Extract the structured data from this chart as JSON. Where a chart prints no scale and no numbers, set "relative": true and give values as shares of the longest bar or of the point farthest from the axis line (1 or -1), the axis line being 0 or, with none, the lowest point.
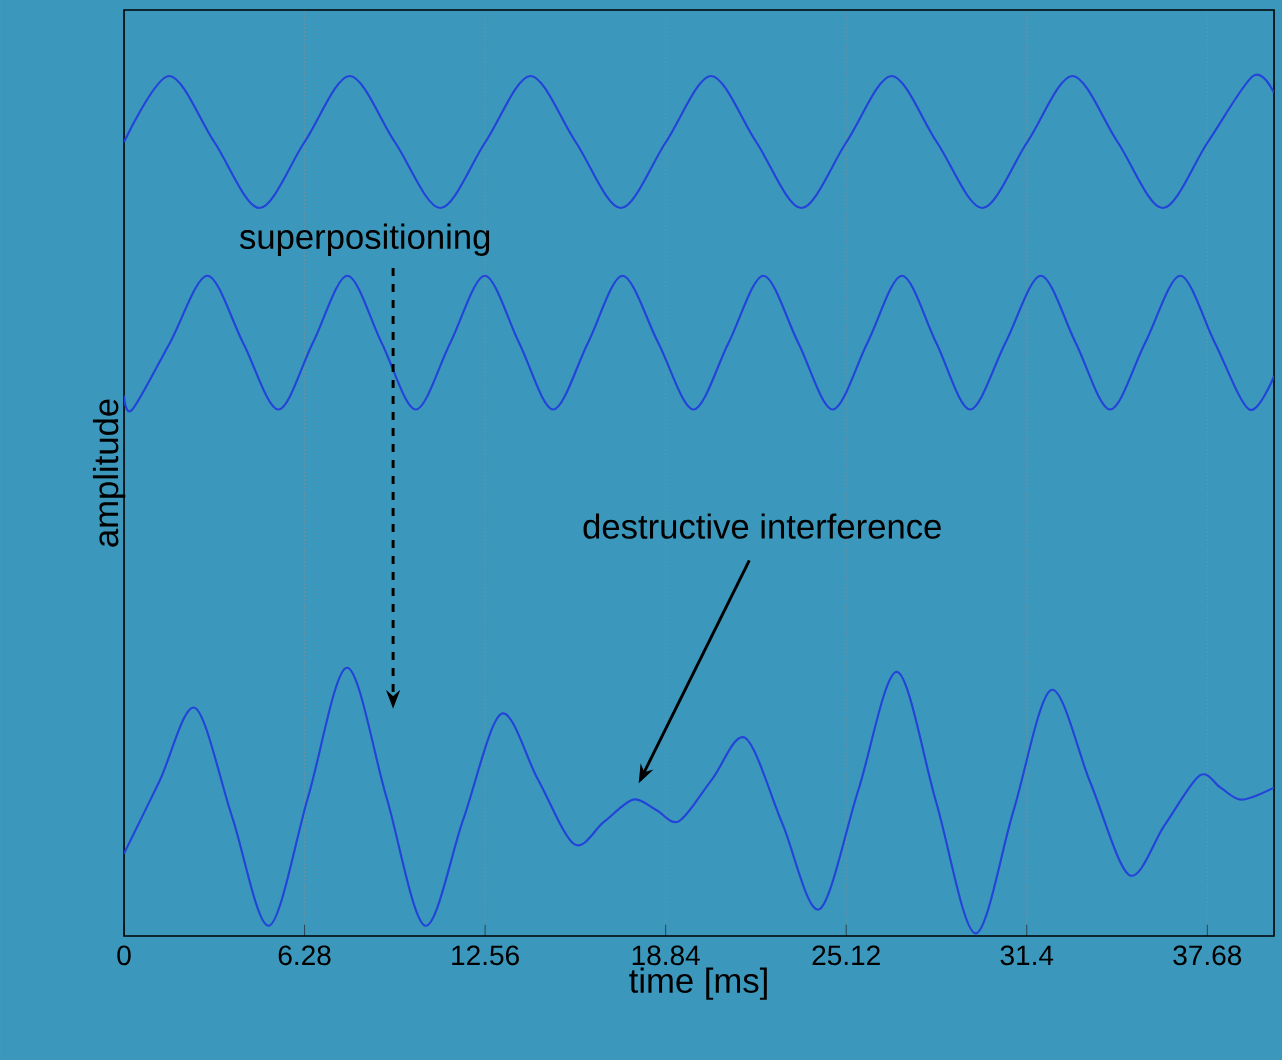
{
  "chart_data": {
    "type": "line",
    "relative": true,
    "xlabel": "time [ms]",
    "ylabel": "amplitude",
    "xlim": [
      0,
      40
    ],
    "xticks": [
      0,
      6.28,
      12.56,
      18.84,
      25.12,
      31.4,
      37.68
    ],
    "grid": "x",
    "annotations": [
      "superpositioning",
      "destructive interference"
    ],
    "series": [
      {
        "color": "#2443d8",
        "x": [
          0,
          1.57,
          3.14,
          4.71,
          6.28,
          7.85,
          9.42,
          11.0,
          12.57,
          14.14,
          15.71,
          17.28,
          18.85,
          20.42,
          21.99,
          23.56,
          25.13,
          26.7,
          28.27,
          29.85,
          31.42,
          32.99,
          34.56,
          36.13,
          37.7,
          39.27,
          40
        ],
        "values": [
          0.923,
          1,
          0.923,
          0.846,
          0.923,
          1,
          0.923,
          0.846,
          0.923,
          1,
          0.923,
          0.846,
          0.923,
          1,
          0.923,
          0.846,
          0.923,
          1,
          0.923,
          0.846,
          0.923,
          1,
          0.923,
          0.846,
          0.923,
          1,
          0.98
        ]
      },
      {
        "color": "#2443d8",
        "x": [
          0,
          0.29,
          1.6,
          2.9,
          4.14,
          5.37,
          6.57,
          7.77,
          8.96,
          10.15,
          11.35,
          12.55,
          13.74,
          14.93,
          16.14,
          17.34,
          18.58,
          19.81,
          21.03,
          22.24,
          23.45,
          24.65,
          25.86,
          27.06,
          28.25,
          29.43,
          30.66,
          31.89,
          33.1,
          34.3,
          35.52,
          36.74,
          37.94,
          39.14,
          40
        ],
        "values": [
          0.627,
          0.611,
          0.689,
          0.767,
          0.689,
          0.611,
          0.689,
          0.767,
          0.689,
          0.611,
          0.689,
          0.767,
          0.689,
          0.611,
          0.689,
          0.767,
          0.689,
          0.611,
          0.689,
          0.767,
          0.689,
          0.611,
          0.689,
          0.767,
          0.689,
          0.611,
          0.689,
          0.767,
          0.689,
          0.611,
          0.689,
          0.767,
          0.689,
          0.611,
          0.65
        ]
      },
      {
        "color": "#2443d8",
        "x": [
          0,
          1.24,
          2.47,
          3.76,
          5.05,
          6.41,
          7.76,
          9.12,
          10.47,
          11.8,
          13.12,
          14.39,
          15.66,
          16.69,
          17.71,
          18.51,
          19.31,
          20.46,
          21.61,
          22.9,
          24.18,
          25.54,
          26.89,
          28.25,
          29.61,
          30.93,
          32.25,
          33.61,
          34.97,
          36.19,
          37.41,
          38.14,
          38.87,
          40
        ],
        "values": [
          0.093,
          0.178,
          0.263,
          0.136,
          0.009,
          0.16,
          0.31,
          0.16,
          0.009,
          0.133,
          0.256,
          0.18,
          0.104,
          0.13,
          0.156,
          0.144,
          0.131,
          0.18,
          0.228,
          0.128,
          0.028,
          0.167,
          0.305,
          0.153,
          0,
          0.142,
          0.284,
          0.176,
          0.068,
          0.126,
          0.184,
          0.17,
          0.156,
          0.17
        ]
      }
    ]
  }
}
